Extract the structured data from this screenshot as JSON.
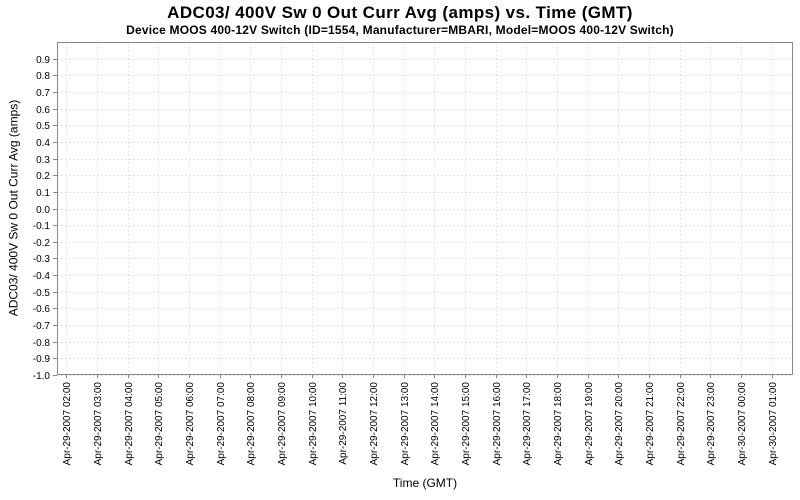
{
  "chart_data": {
    "type": "line",
    "title": "ADC03/ 400V Sw 0 Out Curr Avg (amps) vs. Time (GMT)",
    "subtitle": "Device MOOS 400-12V Switch (ID=1554, Manufacturer=MBARI, Model=MOOS 400-12V Switch)",
    "xlabel": "Time (GMT)",
    "ylabel": "ADC03/ 400V Sw 0 Out Curr Avg (amps)",
    "ylim": [
      -1.0,
      1.0
    ],
    "y_tick_labels": [
      "0.9",
      "0.8",
      "0.7",
      "0.6",
      "0.5",
      "0.4",
      "0.3",
      "0.2",
      "0.1",
      "0.0",
      "-0.1",
      "-0.2",
      "-0.3",
      "-0.4",
      "-0.5",
      "-0.6",
      "-0.7",
      "-0.8",
      "-0.9",
      "-1.0"
    ],
    "x_tick_labels": [
      "Apr-29-2007 02:00",
      "Apr-29-2007 03:00",
      "Apr-29-2007 04:00",
      "Apr-29-2007 05:00",
      "Apr-29-2007 06:00",
      "Apr-29-2007 07:00",
      "Apr-29-2007 08:00",
      "Apr-29-2007 09:00",
      "Apr-29-2007 10:00",
      "Apr-29-2007 11:00",
      "Apr-29-2007 12:00",
      "Apr-29-2007 13:00",
      "Apr-29-2007 14:00",
      "Apr-29-2007 15:00",
      "Apr-29-2007 16:00",
      "Apr-29-2007 17:00",
      "Apr-29-2007 18:00",
      "Apr-29-2007 19:00",
      "Apr-29-2007 20:00",
      "Apr-29-2007 21:00",
      "Apr-29-2007 22:00",
      "Apr-29-2007 23:00",
      "Apr-30-2007 00:00",
      "Apr-30-2007 01:00"
    ],
    "series": [],
    "legend": "none",
    "grid": {
      "horizontal": true,
      "vertical": true,
      "style": "dashed"
    },
    "colors": {
      "background": "#ffffff",
      "plot_background": "#ffffff",
      "plot_border": "#888888",
      "grid_horizontal": "#e0e0e0",
      "grid_vertical": "#e7e7e7",
      "tick_mark": "#888888",
      "text": "#000000"
    }
  }
}
